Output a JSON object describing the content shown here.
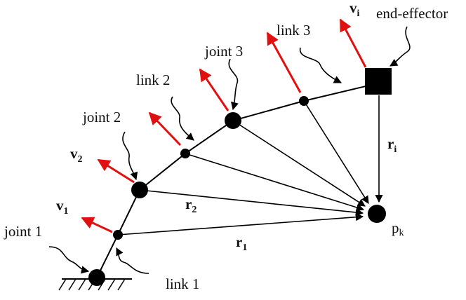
{
  "colors": {
    "velocity_arrow": "#e01010",
    "structure": "#000000",
    "background": "#ffffff"
  },
  "labels": {
    "joint1": "joint 1",
    "joint2": "joint 2",
    "joint3": "joint 3",
    "link1": "link 1",
    "link2": "link 2",
    "link3": "link 3",
    "end_effector": "end-effector",
    "v1": {
      "base": "v",
      "sub": "1"
    },
    "v2": {
      "base": "v",
      "sub": "2"
    },
    "vi": {
      "base": "v",
      "sub": "i"
    },
    "r1": {
      "base": "r",
      "sub": "1"
    },
    "r2": {
      "base": "r",
      "sub": "2"
    },
    "ri": {
      "base": "r",
      "sub": "i"
    },
    "pk": {
      "base": "p",
      "sub": "k"
    }
  }
}
